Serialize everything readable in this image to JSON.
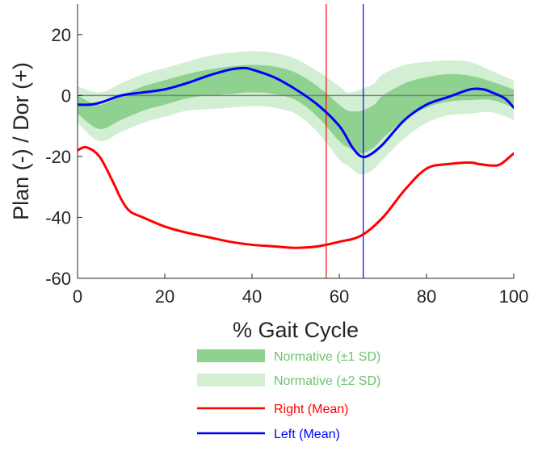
{
  "chart_data": {
    "type": "line",
    "title": "",
    "xlabel": "% Gait Cycle",
    "ylabel": "Plan (-) / Dor (+)",
    "xlim": [
      0,
      100
    ],
    "ylim": [
      -60,
      30
    ],
    "xticks": [
      0,
      20,
      40,
      60,
      80,
      100
    ],
    "yticks": [
      -60,
      -40,
      -20,
      0,
      20
    ],
    "zero_line": true,
    "grid": false,
    "legend_position": "below-plot",
    "colors": {
      "right": "#ff0000",
      "left": "#0000ff",
      "sd1": "#8fd18f",
      "sd2": "#d3efd3",
      "zero": "#7f7f7f",
      "axis": "#262626"
    },
    "normative": {
      "x": [
        0,
        5,
        10,
        15,
        20,
        25,
        30,
        35,
        40,
        45,
        50,
        55,
        60,
        62,
        65,
        68,
        70,
        75,
        80,
        85,
        90,
        95,
        100
      ],
      "mean": [
        -3,
        -7,
        -4,
        -1,
        1,
        3,
        4,
        5,
        5.5,
        5,
        3,
        -2,
        -9,
        -11,
        -12,
        -10,
        -7,
        -2,
        1,
        2.5,
        2.5,
        1.5,
        -1
      ],
      "sd1_upper": [
        0,
        -3,
        0,
        3,
        5,
        7,
        8.5,
        9.5,
        10,
        9.5,
        7.5,
        3,
        -3,
        -5,
        -5,
        -3,
        0,
        4,
        6,
        7,
        6.5,
        4.5,
        2
      ],
      "sd1_lower": [
        -6,
        -11,
        -8,
        -5,
        -3,
        -1,
        0,
        0.5,
        1,
        0.5,
        -1.5,
        -7,
        -15,
        -17,
        -19,
        -17,
        -14,
        -8,
        -4,
        -2,
        -1.5,
        -1.5,
        -4
      ],
      "sd2_upper": [
        3,
        1,
        4,
        7,
        9,
        11,
        13,
        14,
        14.5,
        14,
        12,
        8,
        3,
        1,
        2,
        4,
        7,
        10,
        11,
        11.5,
        11,
        8,
        5
      ],
      "sd2_lower": [
        -9,
        -15,
        -12,
        -9,
        -7,
        -5,
        -4.5,
        -4,
        -3.5,
        -4,
        -6,
        -12,
        -21,
        -23,
        -26,
        -24,
        -21,
        -14,
        -9,
        -6.5,
        -6,
        -5.5,
        -8
      ]
    },
    "series": [
      {
        "name": "Right (Mean)",
        "x": [
          0,
          2,
          5,
          8,
          10,
          12,
          15,
          20,
          25,
          30,
          35,
          40,
          45,
          50,
          55,
          60,
          65,
          70,
          75,
          80,
          85,
          90,
          92,
          95,
          97,
          100
        ],
        "values": [
          -18,
          -17,
          -20,
          -28,
          -34,
          -38,
          -40,
          -43,
          -45,
          -46.5,
          -48,
          -49,
          -49.5,
          -50,
          -49.5,
          -48,
          -46,
          -40,
          -31,
          -24,
          -22.5,
          -22,
          -22.5,
          -23,
          -22.5,
          -19
        ]
      },
      {
        "name": "Left (Mean)",
        "x": [
          0,
          3,
          6,
          10,
          15,
          20,
          25,
          30,
          35,
          38,
          40,
          45,
          50,
          55,
          60,
          63,
          65,
          67,
          70,
          75,
          80,
          85,
          90,
          93,
          95,
          98,
          100
        ],
        "values": [
          -3,
          -3,
          -2,
          0,
          1,
          2,
          4,
          6.5,
          8.5,
          9,
          8.5,
          6,
          2,
          -3,
          -10,
          -17,
          -20,
          -19.5,
          -16,
          -8,
          -3,
          -0.5,
          2,
          2,
          1,
          -1,
          -4
        ]
      }
    ],
    "vertical_lines": [
      {
        "x": 57,
        "color": "#ff0000"
      },
      {
        "x": 65.5,
        "color": "#0000ff"
      }
    ],
    "legend": [
      {
        "label": "Normative (±1 SD)",
        "kind": "band",
        "color": "#8fd18f",
        "text_color": "#6cc36c"
      },
      {
        "label": "Normative (±2 SD)",
        "kind": "band",
        "color": "#d3efd3",
        "text_color": "#6cc36c"
      },
      {
        "label": "Right (Mean)",
        "kind": "line",
        "color": "#ff0000",
        "text_color": "#ff0000"
      },
      {
        "label": "Left (Mean)",
        "kind": "line",
        "color": "#0000ff",
        "text_color": "#0000ff"
      }
    ]
  }
}
